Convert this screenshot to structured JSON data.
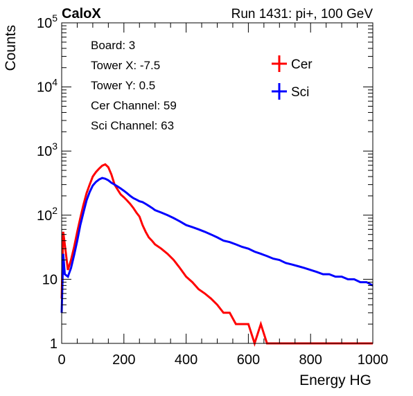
{
  "header": {
    "brand": "CaloX",
    "run_info": "Run 1431: pi+, 100 GeV"
  },
  "info_box": {
    "lines": [
      "Board: 3",
      "Tower X: -7.5",
      "Tower Y: 0.5",
      "Cer Channel: 59",
      "Sci Channel: 63"
    ]
  },
  "chart_data": {
    "type": "line",
    "title": "",
    "xlabel": "Energy HG",
    "ylabel": "Counts",
    "xlim": [
      0,
      1000
    ],
    "ylim": [
      1,
      100000
    ],
    "yscale": "log",
    "x_ticks": [
      0,
      200,
      400,
      600,
      800,
      1000
    ],
    "y_ticks": [
      {
        "value": 1,
        "base": "1",
        "exp": ""
      },
      {
        "value": 10,
        "base": "10",
        "exp": ""
      },
      {
        "value": 100,
        "base": "10",
        "exp": "2"
      },
      {
        "value": 1000,
        "base": "10",
        "exp": "3"
      },
      {
        "value": 10000,
        "base": "10",
        "exp": "4"
      },
      {
        "value": 100000,
        "base": "10",
        "exp": "5"
      }
    ],
    "legend_position": "top-right",
    "grid": false,
    "series": [
      {
        "name": "Cer",
        "color": "#ff0000",
        "x": [
          0,
          5,
          10,
          20,
          30,
          40,
          50,
          60,
          70,
          80,
          90,
          100,
          110,
          120,
          130,
          140,
          150,
          160,
          170,
          180,
          190,
          200,
          210,
          220,
          230,
          240,
          250,
          260,
          270,
          280,
          290,
          300,
          320,
          340,
          360,
          380,
          400,
          420,
          440,
          460,
          480,
          500,
          520,
          540,
          560,
          580,
          600,
          620,
          640,
          660,
          680,
          700,
          720,
          740,
          760,
          780,
          800,
          820,
          840,
          860,
          880,
          900,
          920,
          940,
          960,
          980,
          1000
        ],
        "values": [
          5,
          55,
          35,
          14,
          20,
          32,
          55,
          90,
          145,
          220,
          300,
          400,
          470,
          530,
          590,
          620,
          560,
          430,
          300,
          250,
          210,
          190,
          170,
          150,
          130,
          110,
          95,
          70,
          55,
          45,
          40,
          35,
          30,
          25,
          20,
          15,
          11,
          9,
          7,
          6,
          5,
          4,
          3,
          3,
          2,
          2,
          2,
          1,
          2,
          1,
          1,
          1,
          1,
          1,
          1,
          1,
          1,
          1,
          1,
          1,
          1,
          1,
          1,
          1,
          1,
          1,
          1
        ]
      },
      {
        "name": "Sci",
        "color": "#0000ff",
        "x": [
          0,
          5,
          10,
          20,
          30,
          40,
          50,
          60,
          70,
          80,
          90,
          100,
          110,
          120,
          130,
          140,
          150,
          160,
          170,
          180,
          190,
          200,
          210,
          220,
          230,
          240,
          250,
          260,
          270,
          280,
          290,
          300,
          320,
          340,
          360,
          380,
          400,
          420,
          440,
          460,
          480,
          500,
          520,
          540,
          560,
          580,
          600,
          620,
          640,
          660,
          680,
          700,
          720,
          740,
          760,
          780,
          800,
          820,
          840,
          860,
          880,
          900,
          920,
          940,
          960,
          980,
          1000
        ],
        "values": [
          3,
          25,
          12,
          11,
          15,
          24,
          40,
          70,
          110,
          170,
          230,
          290,
          330,
          360,
          380,
          370,
          350,
          320,
          300,
          280,
          260,
          240,
          220,
          200,
          185,
          175,
          165,
          160,
          150,
          140,
          130,
          120,
          110,
          100,
          90,
          80,
          70,
          65,
          60,
          55,
          50,
          45,
          40,
          38,
          35,
          32,
          30,
          27,
          25,
          23,
          21,
          20,
          18,
          17,
          16,
          15,
          14,
          13,
          12,
          12,
          11,
          11,
          10,
          10,
          9,
          9,
          8
        ]
      }
    ]
  }
}
